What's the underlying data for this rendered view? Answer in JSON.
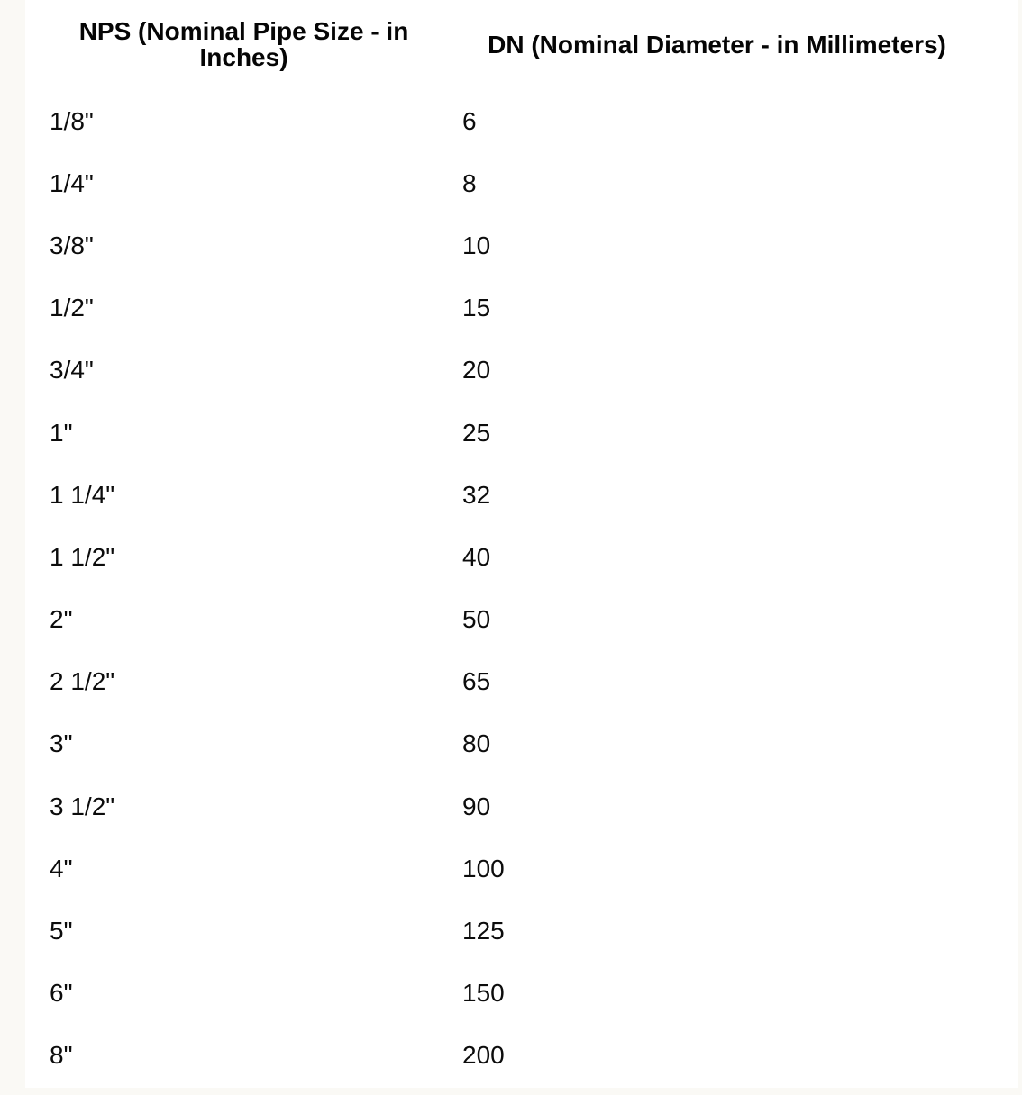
{
  "page": {
    "background_color": "#faf9f5",
    "surface_color": "#ffffff",
    "text_color": "#111111"
  },
  "table": {
    "headers": [
      {
        "id": "nps",
        "label": "NPS (Nominal Pipe Size - in Inches)"
      },
      {
        "id": "dn",
        "label": "DN (Nominal Diameter - in Millimeters)"
      }
    ],
    "rows": [
      {
        "nps": "1/8\"",
        "dn": "6"
      },
      {
        "nps": "1/4\"",
        "dn": "8"
      },
      {
        "nps": "3/8\"",
        "dn": "10"
      },
      {
        "nps": "1/2\"",
        "dn": "15"
      },
      {
        "nps": "3/4\"",
        "dn": "20"
      },
      {
        "nps": "1\"",
        "dn": "25"
      },
      {
        "nps": "1 1/4\"",
        "dn": "32"
      },
      {
        "nps": "1 1/2\"",
        "dn": "40"
      },
      {
        "nps": "2\"",
        "dn": "50"
      },
      {
        "nps": "2 1/2\"",
        "dn": "65"
      },
      {
        "nps": "3\"",
        "dn": "80"
      },
      {
        "nps": "3 1/2\"",
        "dn": "90"
      },
      {
        "nps": "4\"",
        "dn": "100"
      },
      {
        "nps": "5\"",
        "dn": "125"
      },
      {
        "nps": "6\"",
        "dn": "150"
      },
      {
        "nps": "8\"",
        "dn": "200"
      }
    ]
  }
}
